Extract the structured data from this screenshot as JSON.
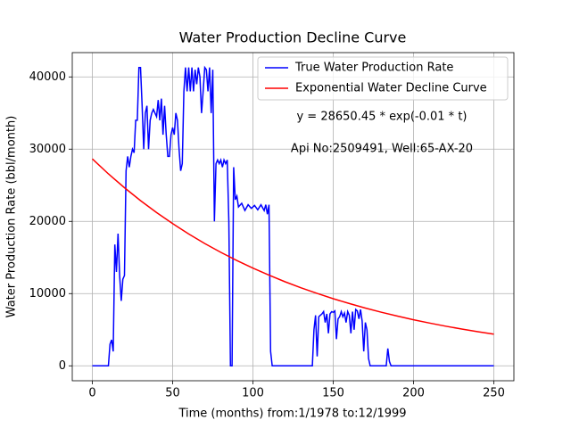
{
  "chart_data": {
    "type": "line",
    "title": "Water Production Decline Curve",
    "xlabel": "Time (months) from:1/1978 to:12/1999",
    "ylabel": "Water Production Rate (bbl/month)",
    "annotations": [
      "y = 28650.45 * exp(-0.01 * t)",
      "Api No:2509491, Well:65-AX-20"
    ],
    "xlim": [
      -12.5,
      262.5
    ],
    "ylim": [
      -2065,
      43365
    ],
    "xticks": [
      0,
      50,
      100,
      150,
      200,
      250
    ],
    "yticks": [
      0,
      10000,
      20000,
      30000,
      40000
    ],
    "grid": true,
    "legend": "upper right",
    "series": [
      {
        "name": "True Water Production Rate",
        "color": "#0000ff",
        "x": [
          0,
          10,
          11,
          12,
          13,
          14,
          15,
          16,
          17,
          18,
          19,
          20,
          21,
          22,
          23,
          24,
          25,
          26,
          27,
          28,
          29,
          30,
          31,
          32,
          33,
          34,
          35,
          36,
          37,
          38,
          39,
          40,
          41,
          42,
          43,
          44,
          45,
          46,
          47,
          48,
          49,
          50,
          51,
          52,
          53,
          54,
          55,
          56,
          57,
          58,
          59,
          60,
          61,
          62,
          63,
          64,
          65,
          66,
          67,
          68,
          69,
          70,
          71,
          72,
          73,
          74,
          75,
          76,
          77,
          78,
          79,
          80,
          81,
          82,
          83,
          84,
          85,
          86,
          87,
          88,
          89,
          90,
          91,
          93,
          95,
          97,
          99,
          101,
          103,
          105,
          107,
          108,
          109,
          110,
          111,
          112,
          137,
          138,
          139,
          140,
          141,
          142,
          143,
          144,
          145,
          146,
          147,
          148,
          149,
          150,
          151,
          152,
          153,
          154,
          155,
          156,
          157,
          158,
          159,
          160,
          161,
          162,
          163,
          164,
          165,
          166,
          167,
          168,
          169,
          170,
          171,
          172,
          173,
          183,
          184,
          185,
          186,
          250
        ],
        "values": [
          0,
          0,
          3000,
          3600,
          2000,
          16800,
          13000,
          18300,
          12500,
          9000,
          12000,
          12500,
          27000,
          29000,
          27500,
          29000,
          30000,
          29500,
          34000,
          34000,
          41300,
          41300,
          36000,
          30000,
          35000,
          36000,
          30000,
          34000,
          35000,
          35500,
          35000,
          34500,
          36800,
          34000,
          37000,
          32000,
          36000,
          32000,
          29000,
          29000,
          32000,
          33000,
          32000,
          35000,
          34000,
          30000,
          27000,
          28000,
          38000,
          41300,
          38000,
          41300,
          38000,
          41300,
          38000,
          41000,
          39000,
          41300,
          40000,
          35000,
          38000,
          41300,
          41000,
          38000,
          41300,
          35000,
          41000,
          20000,
          28000,
          28500,
          28000,
          28500,
          27500,
          28500,
          28000,
          28500,
          20000,
          0,
          0,
          27500,
          23000,
          23500,
          22000,
          22500,
          21500,
          22300,
          21800,
          22200,
          21600,
          22300,
          21500,
          22300,
          21000,
          22300,
          2000,
          0,
          0,
          5000,
          7000,
          1300,
          6800,
          7000,
          7200,
          7500,
          6000,
          7200,
          4500,
          7200,
          7500,
          7400,
          7600,
          3700,
          6500,
          6800,
          7500,
          6800,
          7300,
          6000,
          7500,
          7000,
          4500,
          7500,
          5000,
          7800,
          7600,
          6500,
          7800,
          6200,
          2000,
          6000,
          5000,
          1000,
          0,
          0,
          2400,
          600,
          0,
          0
        ]
      },
      {
        "name": "Exponential Water Decline Curve",
        "color": "#ff0000",
        "x": [
          0,
          10,
          20,
          30,
          40,
          50,
          60,
          70,
          80,
          90,
          100,
          110,
          120,
          130,
          140,
          150,
          160,
          170,
          180,
          190,
          200,
          210,
          220,
          230,
          240,
          250
        ],
        "values": [
          28650,
          26578,
          24656,
          22873,
          21219,
          19684,
          18261,
          16940,
          15715,
          14578,
          13524,
          12546,
          11639,
          10797,
          10016,
          9292,
          8620,
          7997,
          7418,
          6882,
          6384,
          5923,
          5494,
          5097,
          4728,
          4386
        ]
      }
    ]
  }
}
